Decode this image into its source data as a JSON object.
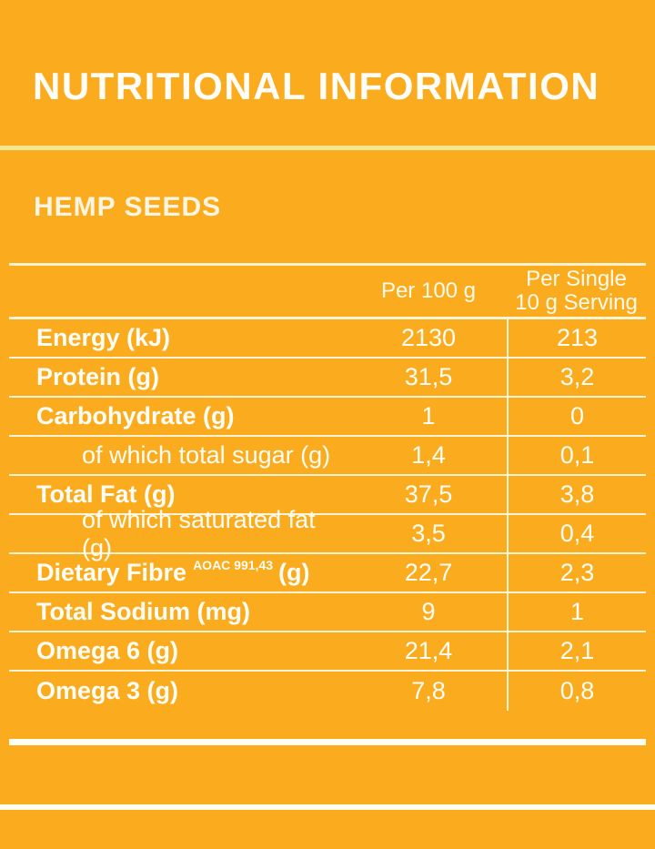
{
  "page": {
    "title": "NUTRITIONAL INFORMATION",
    "subtitle": "HEMP SEEDS",
    "background_color": "#FBAC1E",
    "divider_color": "#EFE893",
    "table_line_color": "#FBF5D6",
    "text_color": "#FFFDF5"
  },
  "table": {
    "columns": {
      "per100": "Per 100 g",
      "perServingLine1": "Per Single",
      "perServingLine2": "10 g Serving"
    },
    "rows": [
      {
        "label": "Energy (kJ)",
        "sup": "",
        "suffix": "",
        "bold": true,
        "indent": false,
        "per100": "2130",
        "perServing": "213"
      },
      {
        "label": "Protein (g)",
        "sup": "",
        "suffix": "",
        "bold": true,
        "indent": false,
        "per100": "31,5",
        "perServing": "3,2"
      },
      {
        "label": "Carbohydrate (g)",
        "sup": "",
        "suffix": "",
        "bold": true,
        "indent": false,
        "per100": "1",
        "perServing": "0"
      },
      {
        "label": "of which total sugar (g)",
        "sup": "",
        "suffix": "",
        "bold": false,
        "indent": true,
        "per100": "1,4",
        "perServing": "0,1"
      },
      {
        "label": "Total Fat (g)",
        "sup": "",
        "suffix": "",
        "bold": true,
        "indent": false,
        "per100": "37,5",
        "perServing": "3,8"
      },
      {
        "label": "of which saturated fat (g)",
        "sup": "",
        "suffix": "",
        "bold": false,
        "indent": true,
        "per100": "3,5",
        "perServing": "0,4"
      },
      {
        "label": "Dietary Fibre",
        "sup": "AOAC 991,43",
        "suffix": "(g)",
        "bold": true,
        "indent": false,
        "per100": "22,7",
        "perServing": "2,3"
      },
      {
        "label": "Total Sodium (mg)",
        "sup": "",
        "suffix": "",
        "bold": true,
        "indent": false,
        "per100": "9",
        "perServing": "1"
      },
      {
        "label": "Omega 6 (g)",
        "sup": "",
        "suffix": "",
        "bold": true,
        "indent": false,
        "per100": "21,4",
        "perServing": "2,1"
      },
      {
        "label": "Omega 3 (g)",
        "sup": "",
        "suffix": "",
        "bold": true,
        "indent": false,
        "per100": "7,8",
        "perServing": "0,8"
      }
    ]
  }
}
